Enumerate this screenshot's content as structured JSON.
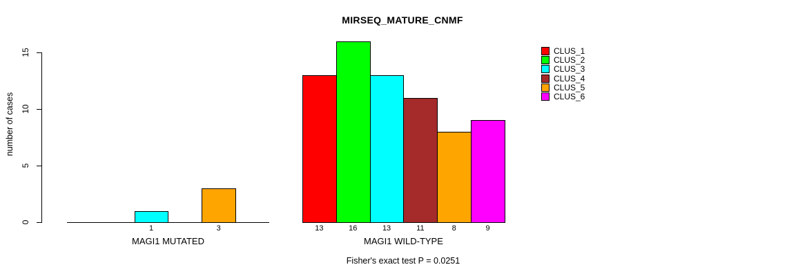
{
  "chart_data": {
    "type": "bar",
    "title": "MIRSEQ_MATURE_CNMF",
    "ylabel": "number of cases",
    "ylim": [
      0,
      15
    ],
    "yticks": [
      0,
      5,
      10,
      15
    ],
    "grid": false,
    "legend_position": "top-right",
    "clusters": [
      {
        "name": "CLUS_1",
        "color": "#FF0000"
      },
      {
        "name": "CLUS_2",
        "color": "#00FF00"
      },
      {
        "name": "CLUS_3",
        "color": "#00FFFF"
      },
      {
        "name": "CLUS_4",
        "color": "#A52A2A"
      },
      {
        "name": "CLUS_5",
        "color": "#FFA500"
      },
      {
        "name": "CLUS_6",
        "color": "#FF00FF"
      }
    ],
    "groups": [
      {
        "label": "MAGI1 MUTATED",
        "values": [
          0,
          0,
          1,
          0,
          3,
          0
        ]
      },
      {
        "label": "MAGI1 WILD-TYPE",
        "values": [
          13,
          16,
          13,
          11,
          8,
          9
        ]
      }
    ],
    "footnote": "Fisher's exact test P = 0.0251"
  }
}
